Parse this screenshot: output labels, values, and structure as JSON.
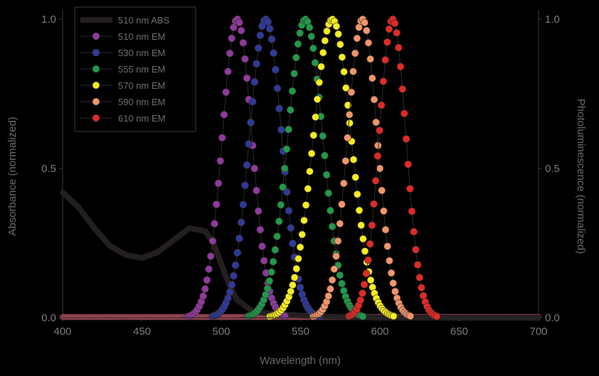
{
  "chart_data": {
    "type": "line",
    "xlabel": "Wavelength (nm)",
    "ylabel": "Absorbance (normalized)",
    "y2label": "Photoluminescence (normalized)",
    "xlim": [
      400,
      700
    ],
    "ylim": [
      0,
      1.0
    ],
    "x_ticks": [
      "400",
      "450",
      "500",
      "550",
      "600",
      "650",
      "700"
    ],
    "y_ticks": [
      "0.0",
      "0.5",
      "1.0"
    ],
    "y2_ticks": [
      "0.0",
      "0.5",
      "1.0"
    ],
    "legend_position": "top-left",
    "absorbance": {
      "name": "510 nm ABS",
      "color": "#231f20",
      "x": [
        400,
        410,
        420,
        430,
        440,
        450,
        460,
        470,
        480,
        490,
        495,
        500,
        505,
        510,
        520,
        540,
        560,
        600,
        650,
        700
      ],
      "y": [
        0.42,
        0.37,
        0.3,
        0.24,
        0.21,
        0.2,
        0.22,
        0.26,
        0.3,
        0.29,
        0.25,
        0.18,
        0.11,
        0.06,
        0.02,
        0.01,
        0.005,
        0.0,
        0.0,
        0.0
      ]
    },
    "series": [
      {
        "name": "510 nm EM",
        "color": "#8e3a9e",
        "peak": 510,
        "fwhm": 22
      },
      {
        "name": "530 nm EM",
        "color": "#2e3a9a",
        "peak": 528,
        "fwhm": 24
      },
      {
        "name": "555 nm EM",
        "color": "#1f9a4a",
        "peak": 553,
        "fwhm": 26
      },
      {
        "name": "570 nm EM",
        "color": "#f5ee20",
        "peak": 570,
        "fwhm": 28
      },
      {
        "name": "590 nm EM",
        "color": "#f0966a",
        "peak": 589,
        "fwhm": 22
      },
      {
        "name": "610 nm EM",
        "color": "#e02a26",
        "peak": 608,
        "fwhm": 20
      }
    ],
    "background_series_color": "#b05060"
  }
}
